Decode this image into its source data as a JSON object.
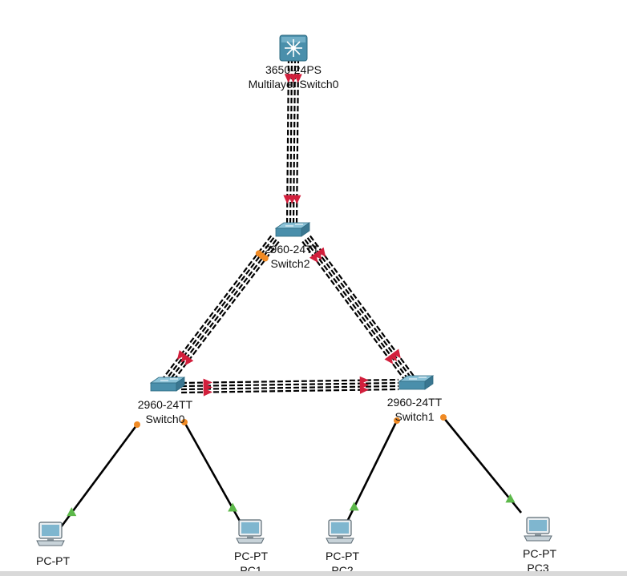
{
  "devices": [
    {
      "id": "ml0",
      "kind": "multilayer",
      "model": "3650-24PS",
      "name": "Multilayer Switch0"
    },
    {
      "id": "sw2",
      "kind": "switch",
      "model": "2960-24TT",
      "name": "Switch2"
    },
    {
      "id": "sw0",
      "kind": "switch",
      "model": "2960-24TT",
      "name": "Switch0"
    },
    {
      "id": "sw1",
      "kind": "switch",
      "model": "2960-24TT",
      "name": "Switch1"
    },
    {
      "id": "pc0",
      "kind": "pc",
      "model": "PC-PT",
      "name": ""
    },
    {
      "id": "pc1",
      "kind": "pc",
      "model": "PC-PT",
      "name": "PC1"
    },
    {
      "id": "pc2",
      "kind": "pc",
      "model": "PC-PT",
      "name": "PC2"
    },
    {
      "id": "pc3",
      "kind": "pc",
      "model": "PC-PT",
      "name": "PC3"
    }
  ],
  "links": [
    {
      "from": "ml0",
      "to": "sw2",
      "type": "etherchannel",
      "from_status": "down",
      "to_status": "down"
    },
    {
      "from": "sw2",
      "to": "sw0",
      "type": "etherchannel",
      "from_status": "blocking",
      "to_status": "down"
    },
    {
      "from": "sw2",
      "to": "sw1",
      "type": "etherchannel",
      "from_status": "down",
      "to_status": "down"
    },
    {
      "from": "sw0",
      "to": "sw1",
      "type": "etherchannel",
      "from_status": "down",
      "to_status": "down"
    },
    {
      "from": "sw0",
      "to": "pc0",
      "type": "straight",
      "from_status": "blocking",
      "to_status": "up"
    },
    {
      "from": "sw0",
      "to": "pc1",
      "type": "straight",
      "from_status": "blocking",
      "to_status": "up"
    },
    {
      "from": "sw1",
      "to": "pc2",
      "type": "straight",
      "from_status": "blocking",
      "to_status": "up"
    },
    {
      "from": "sw1",
      "to": "pc3",
      "type": "straight",
      "from_status": "blocking",
      "to_status": "up"
    }
  ],
  "colors": {
    "link_down": "#d21f3c",
    "link_up": "#5cb84a",
    "link_blocking": "#f08a24",
    "device_body": "#4a8fab",
    "device_top": "#8cc3d8"
  }
}
